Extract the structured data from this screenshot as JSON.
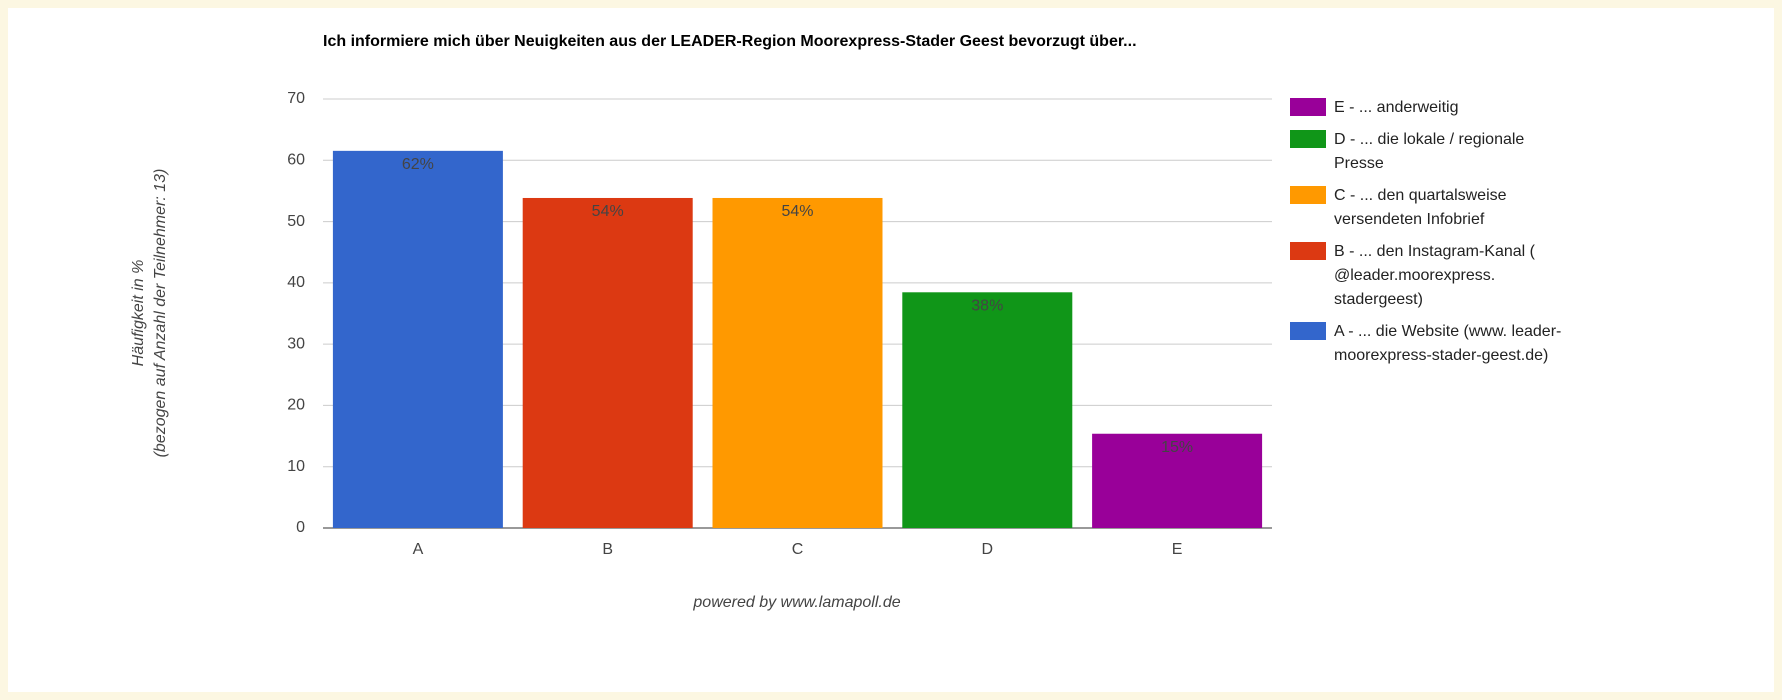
{
  "chart_data": {
    "type": "bar",
    "title": "Ich informiere mich über Neuigkeiten aus der LEADER-Region Moorexpress-Stader Geest bevorzugt über...",
    "y_label": [
      "Häufigkeit in %",
      "(bezogen auf Anzahl der Teilnehmer: 13)"
    ],
    "footer": "powered by www.lamapoll.de",
    "categories": [
      "A",
      "B",
      "C",
      "D",
      "E"
    ],
    "values": [
      61.54,
      53.85,
      53.85,
      38.46,
      15.38
    ],
    "value_labels": [
      "62%",
      "54%",
      "54%",
      "38%",
      "15%"
    ],
    "colors": [
      "#3366cc",
      "#dc3912",
      "#ff9900",
      "#109618",
      "#990099"
    ],
    "value_label_colors": [
      "#ffffff",
      "#ffffff",
      "#333333",
      "#ffffff",
      "#ffffff"
    ],
    "legend": [
      "A - ... die Website (www. leader-moorexpress-stader-geest.de)",
      "B - ... den Instagram-Kanal ( @leader.moorexpress. stadergeest)",
      "C - ... den quartalsweise versendeten Infobrief",
      "D - ... die lokale / regionale Presse",
      "E - ... anderweitig"
    ],
    "ylim": [
      0,
      70
    ],
    "yticks": [
      0,
      10,
      20,
      30,
      40,
      50,
      60,
      70
    ],
    "grid": true
  }
}
